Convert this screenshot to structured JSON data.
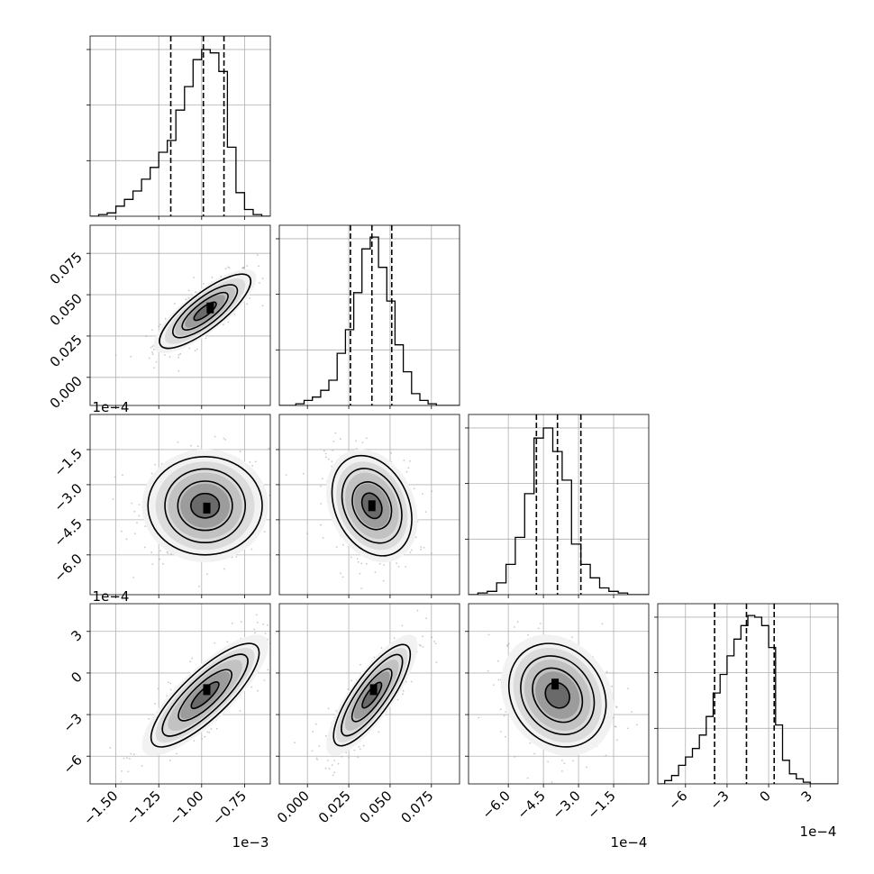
{
  "chart_data": {
    "type": "corner",
    "variables": [
      {
        "index": 0,
        "range": [
          -1.65,
          -0.6
        ],
        "scale": 0.001,
        "offset_text": "1e−3",
        "ticks": [
          -1.5,
          -1.25,
          -1.0,
          -0.75
        ],
        "tick_labels": [
          "−1.50",
          "−1.25",
          "−1.00",
          "−0.75"
        ],
        "quantiles": [
          -1.18,
          -0.99,
          -0.87
        ],
        "histogram": {
          "edges": [
            -1.65,
            -1.6,
            -1.55,
            -1.5,
            -1.45,
            -1.4,
            -1.35,
            -1.3,
            -1.25,
            -1.2,
            -1.15,
            -1.1,
            -1.05,
            -1.0,
            -0.95,
            -0.9,
            -0.85,
            -0.8,
            -0.75,
            -0.7,
            -0.65,
            -0.6
          ],
          "counts": [
            0,
            0.01,
            0.02,
            0.06,
            0.1,
            0.15,
            0.22,
            0.29,
            0.38,
            0.45,
            0.63,
            0.77,
            0.93,
            0.99,
            0.97,
            0.86,
            0.41,
            0.14,
            0.04,
            0.01,
            0
          ]
        }
      },
      {
        "index": 1,
        "range": [
          -0.017,
          0.092
        ],
        "scale": 1,
        "offset_text": "",
        "ticks": [
          0.0,
          0.025,
          0.05,
          0.075
        ],
        "tick_labels": [
          "0.000",
          "0.025",
          "0.050",
          "0.075"
        ],
        "quantiles": [
          0.026,
          0.039,
          0.051
        ],
        "histogram": {
          "edges": [
            -0.017,
            -0.012,
            -0.007,
            -0.002,
            0.003,
            0.008,
            0.013,
            0.018,
            0.023,
            0.028,
            0.033,
            0.038,
            0.043,
            0.048,
            0.053,
            0.058,
            0.063,
            0.068,
            0.073,
            0.078,
            0.083,
            0.088,
            0.092
          ],
          "counts": [
            0,
            0,
            0.01,
            0.03,
            0.05,
            0.09,
            0.15,
            0.31,
            0.45,
            0.67,
            0.93,
            1.0,
            0.82,
            0.62,
            0.36,
            0.2,
            0.07,
            0.03,
            0.01,
            0,
            0,
            0
          ]
        }
      },
      {
        "index": 2,
        "range": [
          -7.7,
          0.0
        ],
        "scale": 0.0001,
        "offset_text": "1e−4",
        "ticks": [
          -6.0,
          -4.5,
          -3.0,
          -1.5
        ],
        "tick_labels": [
          "−6.0",
          "−4.5",
          "−3.0",
          "−1.5"
        ],
        "quantiles": [
          -4.8,
          -3.9,
          -2.9
        ],
        "histogram": {
          "edges": [
            -7.7,
            -7.3,
            -6.9,
            -6.5,
            -6.1,
            -5.7,
            -5.3,
            -4.9,
            -4.5,
            -4.1,
            -3.7,
            -3.3,
            -2.9,
            -2.5,
            -2.1,
            -1.7,
            -1.3,
            -0.9,
            -0.5,
            -0.1,
            0.0
          ],
          "counts": [
            0,
            0.01,
            0.02,
            0.07,
            0.18,
            0.34,
            0.6,
            0.93,
            0.99,
            0.85,
            0.68,
            0.3,
            0.18,
            0.1,
            0.04,
            0.02,
            0.01,
            0,
            0,
            0
          ]
        }
      },
      {
        "index": 3,
        "range": [
          -8.0,
          5.0
        ],
        "scale": 0.0001,
        "offset_text": "1e−4",
        "ticks": [
          -6,
          -3,
          0,
          3
        ],
        "tick_labels": [
          "−6",
          "−3",
          "0",
          "3"
        ],
        "quantiles": [
          -3.9,
          -1.6,
          0.4
        ],
        "histogram": {
          "edges": [
            -8.0,
            -7.5,
            -7.0,
            -6.5,
            -6.0,
            -5.5,
            -5.0,
            -4.5,
            -4.0,
            -3.5,
            -3.0,
            -2.5,
            -2.0,
            -1.5,
            -1.0,
            -0.5,
            0.0,
            0.5,
            1.0,
            1.5,
            2.0,
            2.5,
            3.0,
            3.5,
            4.0,
            4.5,
            5.0
          ],
          "counts": [
            0,
            0.02,
            0.05,
            0.11,
            0.16,
            0.21,
            0.29,
            0.4,
            0.54,
            0.65,
            0.76,
            0.86,
            0.94,
            1.0,
            0.99,
            0.94,
            0.81,
            0.35,
            0.14,
            0.06,
            0.03,
            0.01,
            0,
            0,
            0,
            0
          ]
        }
      }
    ],
    "pairs": [
      {
        "row": 1,
        "col": 0,
        "center": [
          -0.98,
          0.04
        ],
        "spread": [
          0.13,
          0.011
        ],
        "correlation": 0.8,
        "density_peak": [
          -0.95,
          0.042
        ],
        "contour_levels": [
          0.5,
          1.0,
          1.5,
          2.0
        ]
      },
      {
        "row": 2,
        "col": 0,
        "center": [
          -0.98,
          -3.9
        ],
        "spread": [
          0.16,
          1.05
        ],
        "correlation": 0.0,
        "density_peak": [
          -0.97,
          -4.0
        ],
        "contour_levels": [
          0.5,
          1.0,
          1.5,
          2.0
        ]
      },
      {
        "row": 2,
        "col": 1,
        "center": [
          0.039,
          -3.9
        ],
        "spread": [
          0.012,
          1.05
        ],
        "correlation": -0.25,
        "density_peak": [
          0.039,
          -3.9
        ],
        "contour_levels": [
          0.5,
          1.0,
          1.5,
          2.0
        ]
      },
      {
        "row": 3,
        "col": 0,
        "center": [
          -0.98,
          -1.6
        ],
        "spread": [
          0.16,
          1.9
        ],
        "correlation": 0.82,
        "density_peak": [
          -0.97,
          -1.2
        ],
        "contour_levels": [
          0.5,
          1.0,
          1.5,
          2.0
        ]
      },
      {
        "row": 3,
        "col": 1,
        "center": [
          0.039,
          -1.6
        ],
        "spread": [
          0.012,
          1.9
        ],
        "correlation": 0.82,
        "density_peak": [
          0.04,
          -1.2
        ],
        "contour_levels": [
          0.5,
          1.0,
          1.5,
          2.0
        ]
      },
      {
        "row": 3,
        "col": 2,
        "center": [
          -3.9,
          -1.6
        ],
        "spread": [
          1.05,
          1.9
        ],
        "correlation": -0.2,
        "density_peak": [
          -4.0,
          -0.8
        ],
        "contour_levels": [
          0.5,
          1.0,
          1.5,
          2.0
        ]
      }
    ],
    "grid": true,
    "title": "",
    "legend": "none"
  }
}
